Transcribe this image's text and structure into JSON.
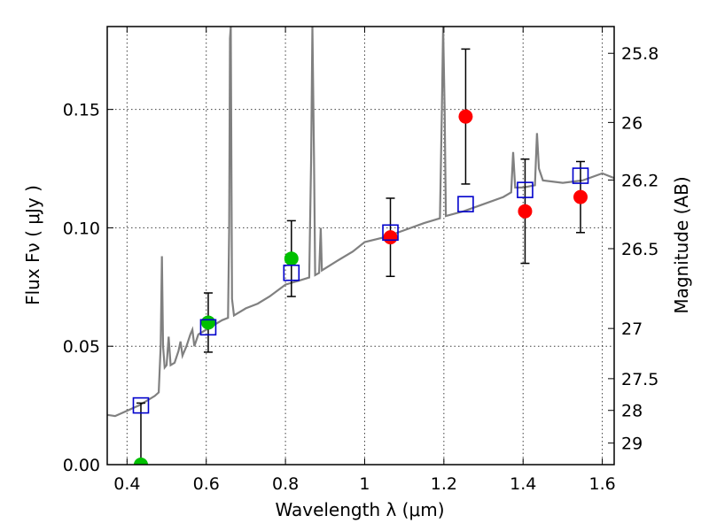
{
  "chart_data": {
    "type": "scatter",
    "xlabel": "Wavelength  λ (μm)",
    "ylabel": "Flux  Fν  ( μJy )",
    "y2label": "Magnitude (AB)",
    "xlim": [
      0.35,
      1.63
    ],
    "ylim": [
      0.0,
      0.185
    ],
    "grid": true,
    "x_ticks": [
      0.4,
      0.6,
      0.8,
      1.0,
      1.2,
      1.4,
      1.6
    ],
    "x_tick_labels": [
      "0.4",
      "0.6",
      "0.8",
      "1",
      "1.2",
      "1.4",
      "1.6"
    ],
    "y_ticks": [
      0.0,
      0.05,
      0.1,
      0.15
    ],
    "y_tick_labels": [
      "0.00",
      "0.05",
      "0.10",
      "0.15"
    ],
    "y2_ticks": [
      {
        "label": "25.8",
        "flux": 0.1737
      },
      {
        "label": "26",
        "flux": 0.1445
      },
      {
        "label": "26.2",
        "flux": 0.1202
      },
      {
        "label": "26.5",
        "flux": 0.0912
      },
      {
        "label": "27",
        "flux": 0.0575
      },
      {
        "label": "27.5",
        "flux": 0.0363
      },
      {
        "label": "28",
        "flux": 0.0229
      },
      {
        "label": "29",
        "flux": 0.0091
      }
    ],
    "colors": {
      "model": "#808080",
      "observed_red": "#ff0000",
      "observed_green": "#00c000",
      "model_photometry": "#0000cc",
      "errorbar": "#000000"
    },
    "series": [
      {
        "name": "model-spectrum",
        "kind": "line",
        "color": "#808080",
        "points": [
          [
            0.35,
            0.021
          ],
          [
            0.37,
            0.0205
          ],
          [
            0.39,
            0.022
          ],
          [
            0.41,
            0.0235
          ],
          [
            0.43,
            0.025
          ],
          [
            0.45,
            0.027
          ],
          [
            0.47,
            0.029
          ],
          [
            0.48,
            0.0305
          ],
          [
            0.485,
            0.05
          ],
          [
            0.488,
            0.088
          ],
          [
            0.491,
            0.05
          ],
          [
            0.495,
            0.041
          ],
          [
            0.5,
            0.042
          ],
          [
            0.505,
            0.054
          ],
          [
            0.51,
            0.042
          ],
          [
            0.52,
            0.043
          ],
          [
            0.53,
            0.048
          ],
          [
            0.535,
            0.052
          ],
          [
            0.54,
            0.046
          ],
          [
            0.55,
            0.05
          ],
          [
            0.56,
            0.055
          ],
          [
            0.565,
            0.057
          ],
          [
            0.57,
            0.05
          ],
          [
            0.58,
            0.055
          ],
          [
            0.6,
            0.057
          ],
          [
            0.62,
            0.059
          ],
          [
            0.64,
            0.061
          ],
          [
            0.655,
            0.062
          ],
          [
            0.658,
            0.1
          ],
          [
            0.66,
            0.18
          ],
          [
            0.662,
            0.185
          ],
          [
            0.665,
            0.07
          ],
          [
            0.67,
            0.063
          ],
          [
            0.7,
            0.066
          ],
          [
            0.73,
            0.068
          ],
          [
            0.76,
            0.071
          ],
          [
            0.8,
            0.076
          ],
          [
            0.84,
            0.078
          ],
          [
            0.86,
            0.079
          ],
          [
            0.865,
            0.13
          ],
          [
            0.868,
            0.185
          ],
          [
            0.872,
            0.13
          ],
          [
            0.875,
            0.08
          ],
          [
            0.885,
            0.081
          ],
          [
            0.889,
            0.1
          ],
          [
            0.892,
            0.082
          ],
          [
            0.93,
            0.086
          ],
          [
            0.97,
            0.09
          ],
          [
            1.0,
            0.094
          ],
          [
            1.05,
            0.096
          ],
          [
            1.1,
            0.099
          ],
          [
            1.15,
            0.102
          ],
          [
            1.19,
            0.104
          ],
          [
            1.195,
            0.15
          ],
          [
            1.198,
            0.185
          ],
          [
            1.202,
            0.15
          ],
          [
            1.205,
            0.105
          ],
          [
            1.25,
            0.107
          ],
          [
            1.3,
            0.11
          ],
          [
            1.35,
            0.113
          ],
          [
            1.37,
            0.115
          ],
          [
            1.375,
            0.132
          ],
          [
            1.38,
            0.117
          ],
          [
            1.4,
            0.117
          ],
          [
            1.43,
            0.118
          ],
          [
            1.435,
            0.14
          ],
          [
            1.44,
            0.125
          ],
          [
            1.45,
            0.12
          ],
          [
            1.5,
            0.119
          ],
          [
            1.55,
            0.12
          ],
          [
            1.6,
            0.123
          ],
          [
            1.63,
            0.121
          ]
        ]
      },
      {
        "name": "observed-flux",
        "kind": "points-with-errorbars",
        "points": [
          {
            "x": 0.435,
            "y": 0.0,
            "err": 0.026,
            "color": "#00c000"
          },
          {
            "x": 0.605,
            "y": 0.06,
            "err": 0.0125,
            "color": "#00c000"
          },
          {
            "x": 0.815,
            "y": 0.087,
            "err": 0.016,
            "color": "#00c000"
          },
          {
            "x": 1.065,
            "y": 0.096,
            "err": 0.0165,
            "color": "#ff0000"
          },
          {
            "x": 1.255,
            "y": 0.147,
            "err": 0.0285,
            "color": "#ff0000"
          },
          {
            "x": 1.405,
            "y": 0.107,
            "err": 0.022,
            "color": "#ff0000"
          },
          {
            "x": 1.545,
            "y": 0.113,
            "err": 0.015,
            "color": "#ff0000"
          }
        ]
      },
      {
        "name": "model-photometry",
        "kind": "open-squares",
        "color": "#0000cc",
        "points": [
          {
            "x": 0.435,
            "y": 0.025
          },
          {
            "x": 0.605,
            "y": 0.058
          },
          {
            "x": 0.815,
            "y": 0.081
          },
          {
            "x": 1.065,
            "y": 0.098
          },
          {
            "x": 1.255,
            "y": 0.11
          },
          {
            "x": 1.405,
            "y": 0.116
          },
          {
            "x": 1.545,
            "y": 0.122
          }
        ]
      }
    ]
  }
}
